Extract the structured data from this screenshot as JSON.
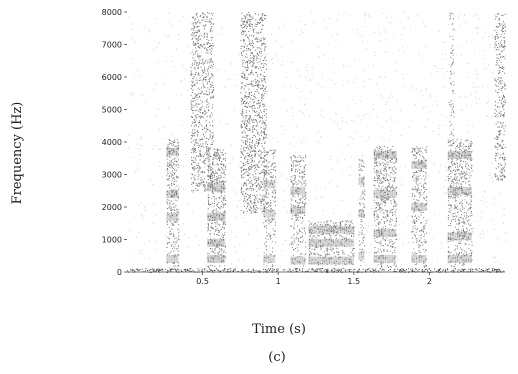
{
  "chart_data": {
    "type": "heatmap",
    "subtype": "spectrogram",
    "xlabel": "Time (s)",
    "ylabel": "Frequency (Hz)",
    "caption": "(c)",
    "xlim": [
      0,
      2.5
    ],
    "ylim": [
      0,
      8000
    ],
    "x_ticks": [
      0.5,
      1,
      1.5,
      2
    ],
    "x_tick_labels": [
      "0.5",
      "1",
      "1.5",
      "2"
    ],
    "y_ticks": [
      0,
      1000,
      2000,
      3000,
      4000,
      5000,
      6000,
      7000,
      8000
    ],
    "y_tick_labels": [
      "0",
      "1000",
      "2000",
      "3000",
      "4000",
      "5000",
      "6000",
      "7000",
      "8000"
    ],
    "colormap": "grayscale (darker = higher energy)",
    "grid": false,
    "regions": [
      {
        "t0": 0.0,
        "t1": 2.5,
        "f0": 0,
        "f1": 120,
        "intensity": 0.9,
        "type": "baseline"
      },
      {
        "t0": 0.26,
        "t1": 0.34,
        "f0": 150,
        "f1": 4100,
        "intensity": 0.55,
        "type": "voiced",
        "formants": [
          400,
          1700,
          2400,
          3700
        ]
      },
      {
        "t0": 0.42,
        "t1": 0.57,
        "f0": 2500,
        "f1": 8000,
        "intensity": 0.5,
        "type": "fricative"
      },
      {
        "t0": 0.53,
        "t1": 0.65,
        "f0": 150,
        "f1": 3800,
        "intensity": 0.6,
        "type": "voiced",
        "formants": [
          400,
          900,
          1700,
          2600
        ]
      },
      {
        "t0": 0.75,
        "t1": 0.92,
        "f0": 1800,
        "f1": 8000,
        "intensity": 0.55,
        "type": "fricative"
      },
      {
        "t0": 0.9,
        "t1": 0.98,
        "f0": 150,
        "f1": 3800,
        "intensity": 0.45,
        "type": "voiced",
        "formants": [
          400,
          1800,
          2700
        ]
      },
      {
        "t0": 1.08,
        "t1": 1.18,
        "f0": 200,
        "f1": 3600,
        "intensity": 0.5,
        "type": "voiced",
        "formants": [
          350,
          1900,
          2500
        ]
      },
      {
        "t0": 1.2,
        "t1": 1.5,
        "f0": 200,
        "f1": 1600,
        "intensity": 0.5,
        "type": "voiced",
        "formants": [
          350,
          900,
          1300
        ]
      },
      {
        "t0": 1.53,
        "t1": 1.57,
        "f0": 200,
        "f1": 3500,
        "intensity": 0.45,
        "type": "voiced",
        "formants": [
          500,
          1800,
          2800
        ]
      },
      {
        "t0": 1.63,
        "t1": 1.78,
        "f0": 150,
        "f1": 3900,
        "intensity": 0.55,
        "type": "voiced",
        "formants": [
          400,
          1200,
          2400,
          3600
        ]
      },
      {
        "t0": 1.88,
        "t1": 1.98,
        "f0": 150,
        "f1": 3900,
        "intensity": 0.5,
        "type": "voiced",
        "formants": [
          400,
          2000,
          3300
        ]
      },
      {
        "t0": 2.12,
        "t1": 2.28,
        "f0": 150,
        "f1": 4100,
        "intensity": 0.55,
        "type": "voiced",
        "formants": [
          400,
          1100,
          2500,
          3600
        ]
      },
      {
        "t0": 2.13,
        "t1": 2.16,
        "f0": 4000,
        "f1": 8000,
        "intensity": 0.35,
        "type": "burst"
      },
      {
        "t0": 2.43,
        "t1": 2.5,
        "f0": 2800,
        "f1": 8000,
        "intensity": 0.5,
        "type": "fricative"
      }
    ]
  }
}
